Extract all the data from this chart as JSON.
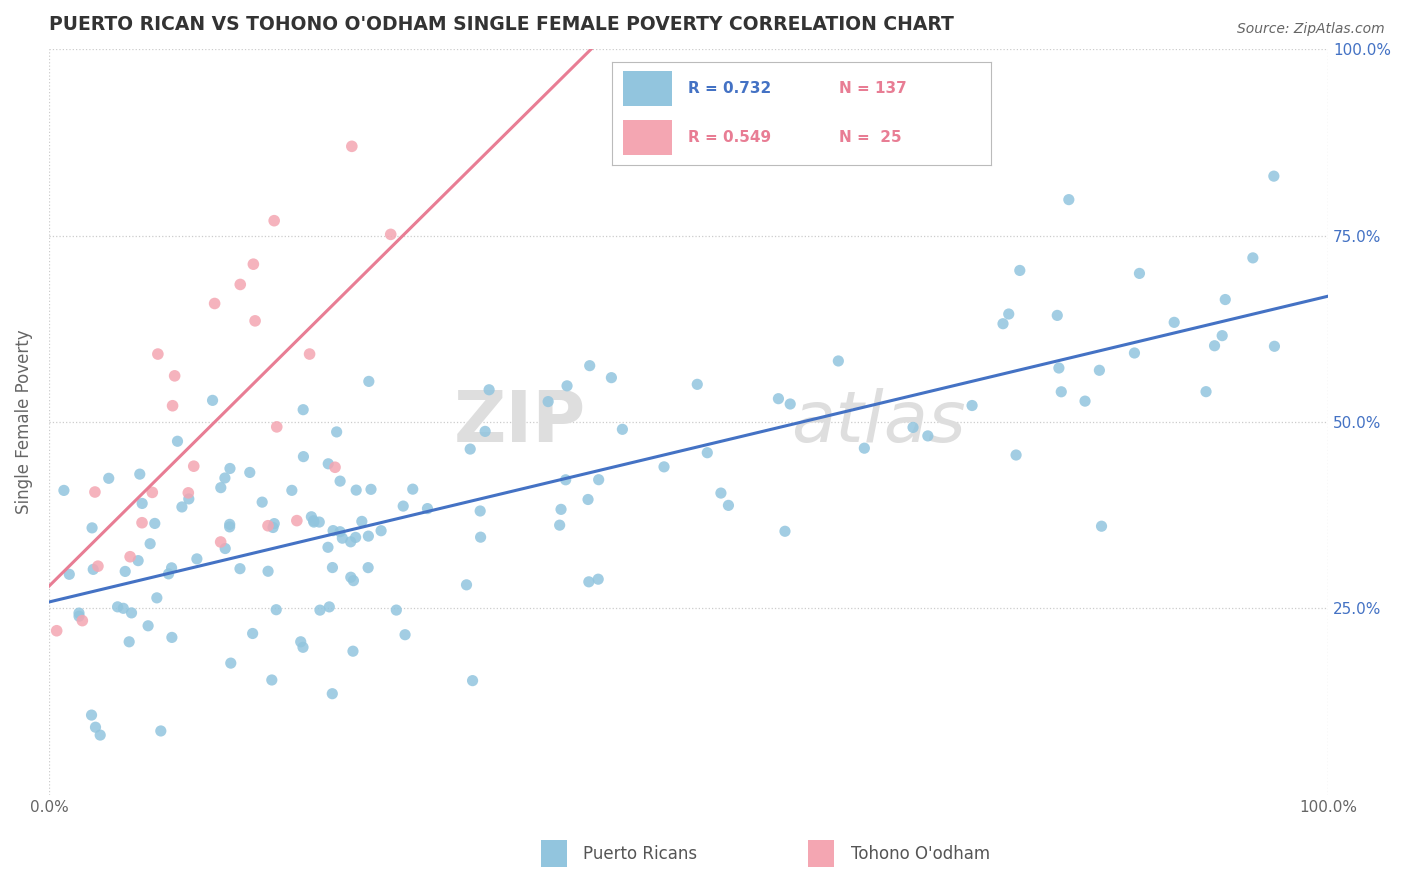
{
  "title": "PUERTO RICAN VS TOHONO O'ODHAM SINGLE FEMALE POVERTY CORRELATION CHART",
  "source": "Source: ZipAtlas.com",
  "ylabel": "Single Female Poverty",
  "background_color": "#ffffff",
  "watermark_zip": "ZIP",
  "watermark_atlas": "atlas",
  "legend": {
    "series1_label": "Puerto Ricans",
    "series1_color": "#92c5de",
    "series1_R": "0.732",
    "series1_N": "137",
    "series2_label": "Tohono O'odham",
    "series2_color": "#f4a6b2",
    "series2_R": "0.549",
    "series2_N": " 25"
  },
  "series1_line_color": "#4472c4",
  "series2_line_color": "#e87d94",
  "grid_color": "#cccccc",
  "title_color": "#333333",
  "right_ytick_color": "#4472c4",
  "legend_R_color": "#4472c4",
  "legend_N_color": "#e87d94"
}
